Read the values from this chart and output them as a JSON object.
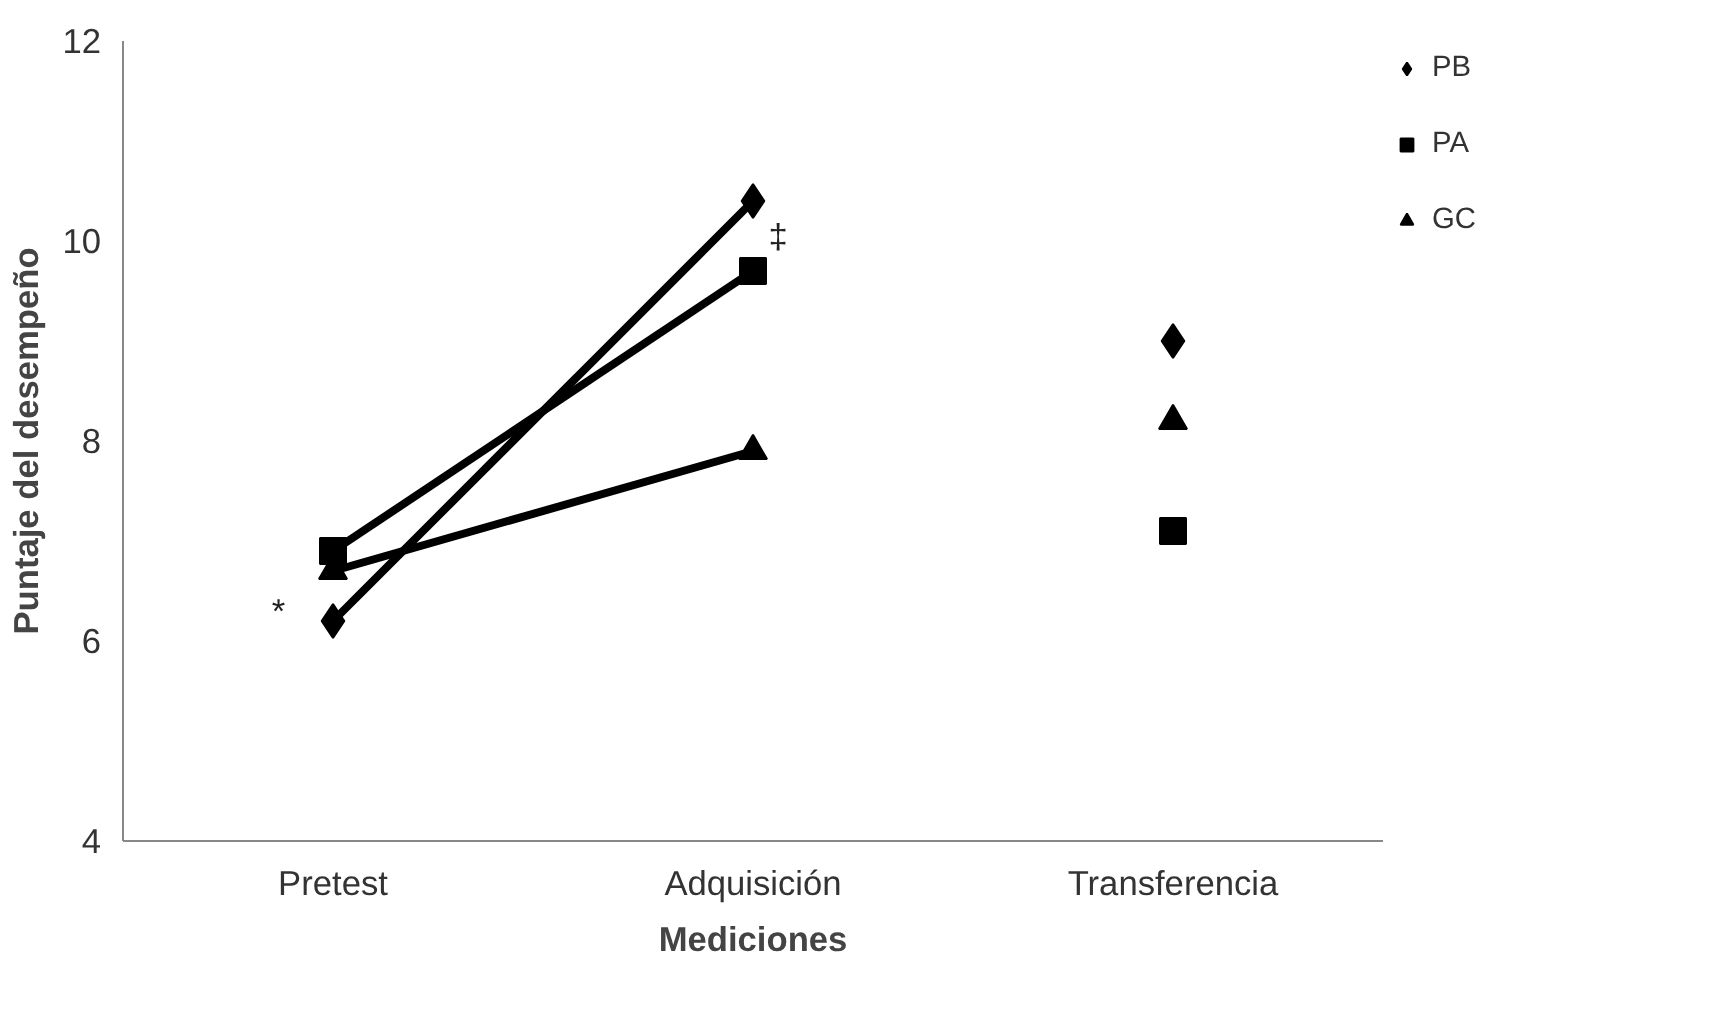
{
  "chart_data": {
    "type": "line",
    "xlabel": "Mediciones",
    "ylabel": "Puntaje del desempeño",
    "categories": [
      "Pretest",
      "Adquisición",
      "Transferencia"
    ],
    "series": [
      {
        "name": "PB",
        "color": "#000000",
        "marker": "diamond",
        "values": [
          6.2,
          10.4,
          null
        ]
      },
      {
        "name": "PA",
        "color": "#000000",
        "marker": "square",
        "values": [
          6.9,
          9.7,
          null
        ]
      },
      {
        "name": "GC",
        "color": "#000000",
        "marker": "triangle",
        "values": [
          6.7,
          7.9,
          null
        ]
      },
      {
        "type": "scatter",
        "color": "#000000",
        "marker": "diamond",
        "values": [
          null,
          null,
          9.0
        ]
      },
      {
        "type": "scatter",
        "color": "#000000",
        "marker": "square",
        "values": [
          null,
          null,
          7.1
        ]
      },
      {
        "type": "scatter",
        "color": "#000000",
        "marker": "triangle",
        "values": [
          null,
          null,
          8.2
        ]
      }
    ],
    "ylim": [
      4,
      12
    ],
    "yticks": [
      4,
      6,
      8,
      10,
      12
    ],
    "grid": false,
    "legend": "top right",
    "annotations": [
      {
        "text": "*",
        "x": "Pretest",
        "y": 6.2
      },
      {
        "text": "‡",
        "x": "Adquisición",
        "y": 9.7
      }
    ]
  }
}
